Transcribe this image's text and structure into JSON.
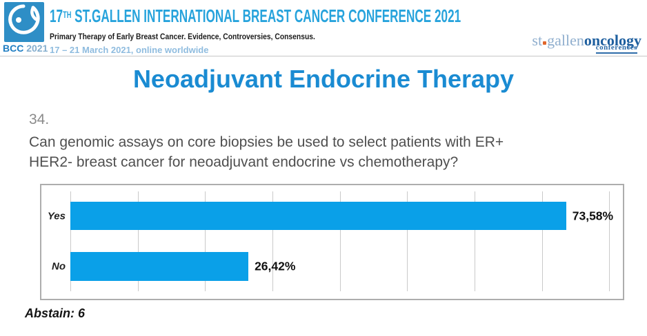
{
  "header": {
    "logo": {
      "bcc": "BCC",
      "year": "2021"
    },
    "title_prefix": "17",
    "title_sup": "TH",
    "title_rest": " ST.GALLEN INTERNATIONAL BREAST CANCER CONFERENCE 2021",
    "subtitle": "Primary Therapy of Early Breast Cancer. Evidence, Controversies, Consensus.",
    "dates": "17 – 21 March 2021, online worldwide",
    "right_logo": {
      "st": "st",
      "gallen": "gallen",
      "oncology": "oncology",
      "conferences": "conferences"
    }
  },
  "slide": {
    "title": "Neoadjuvant Endocrine Therapy",
    "question_number": "34.",
    "question_line1": "Can genomic assays on core biopsies be used to select patients with ER+",
    "question_line2": "HER2- breast cancer for neoadjuvant endocrine vs chemotherapy?",
    "abstain": "Abstain: 6"
  },
  "chart_data": {
    "type": "bar",
    "orientation": "horizontal",
    "title": "",
    "categories": [
      "Yes",
      "No"
    ],
    "values": [
      73.58,
      26.42
    ],
    "value_labels": [
      "73,58%",
      "26,42%"
    ],
    "xlim": [
      0,
      82
    ],
    "gridline_step": 10,
    "grid": true,
    "legend": false,
    "bar_color": "#0AA0E8"
  },
  "colors": {
    "bar_blue": "#0AA0E8",
    "slide_title_blue": "#1A8BD2",
    "conference_title_blue": "#27A3DC",
    "dates_blue": "#8FBCDF",
    "logo_square_blue": "#2E8EC6",
    "stgallen_light_blue": "#8FAECE",
    "oncology_dark_blue": "#1E5F9F",
    "logo_dot_orange": "#E0662B"
  }
}
